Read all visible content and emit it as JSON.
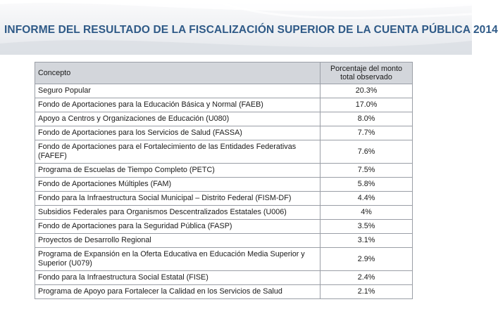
{
  "header": {
    "title": "INFORME DEL RESULTADO DE LA FISCALIZACIÓN SUPERIOR DE LA CUENTA PÚBLICA 2014"
  },
  "table": {
    "col_concepto": "Concepto",
    "col_porcentaje": "Porcentaje del monto total observado",
    "rows": [
      {
        "concepto": "Seguro Popular",
        "porcentaje": "20.3%"
      },
      {
        "concepto": "Fondo de Aportaciones para la Educación Básica y Normal (FAEB)",
        "porcentaje": "17.0%"
      },
      {
        "concepto": "Apoyo a Centros y Organizaciones de Educación (U080)",
        "porcentaje": "8.0%"
      },
      {
        "concepto": "Fondo de Aportaciones para los Servicios de Salud (FASSA)",
        "porcentaje": "7.7%"
      },
      {
        "concepto": "Fondo de Aportaciones para el Fortalecimiento de las Entidades Federativas (FAFEF)",
        "porcentaje": "7.6%"
      },
      {
        "concepto": "Programa de Escuelas de Tiempo Completo (PETC)",
        "porcentaje": "7.5%"
      },
      {
        "concepto": "Fondo de Aportaciones Múltiples (FAM)",
        "porcentaje": "5.8%"
      },
      {
        "concepto": "Fondo para la Infraestructura Social Municipal – Distrito Federal (FISM-DF)",
        "porcentaje": "4.4%"
      },
      {
        "concepto": "Subsidios Federales para Organismos Descentralizados Estatales (U006)",
        "porcentaje": "4%"
      },
      {
        "concepto": "Fondo de Aportaciones para la Seguridad Pública (FASP)",
        "porcentaje": "3.5%"
      },
      {
        "concepto": "Proyectos de Desarrollo Regional",
        "porcentaje": "3.1%"
      },
      {
        "concepto": "Programa de Expansión en la Oferta Educativa en Educación Media Superior y Superior (U079)",
        "porcentaje": "2.9%"
      },
      {
        "concepto": "Fondo para la Infraestructura Social Estatal (FISE)",
        "porcentaje": "2.4%"
      },
      {
        "concepto": "Programa de Apoyo para Fortalecer la Calidad en los Servicios de Salud",
        "porcentaje": "2.1%"
      }
    ]
  }
}
